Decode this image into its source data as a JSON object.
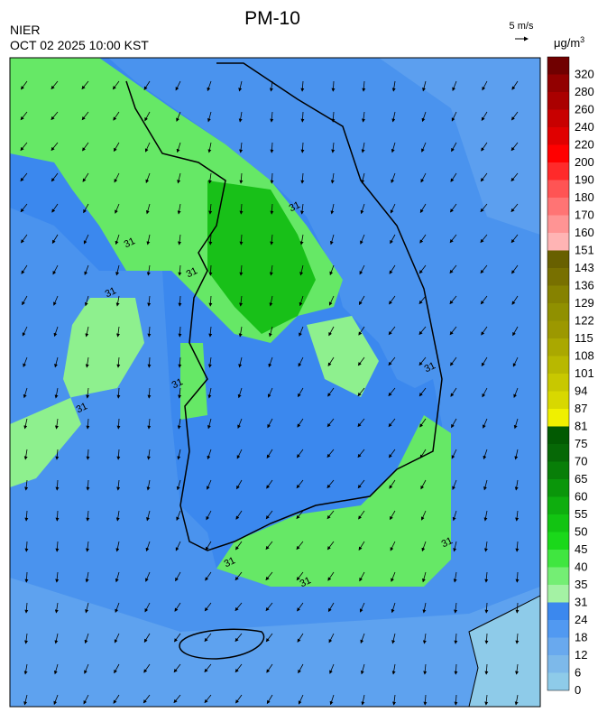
{
  "header": {
    "title": "PM-10",
    "agency": "NIER",
    "timestamp": "OCT 02 2025 10:00 KST"
  },
  "wind_scale": {
    "label": "5 m/s"
  },
  "legend": {
    "unit": "μg/m",
    "unit_exponent": "3",
    "ticks": [
      0,
      6,
      12,
      18,
      24,
      31,
      35,
      40,
      45,
      50,
      55,
      60,
      65,
      70,
      75,
      81,
      87,
      94,
      101,
      108,
      115,
      122,
      129,
      136,
      143,
      151,
      160,
      170,
      180,
      190,
      200,
      220,
      240,
      260,
      280,
      320
    ],
    "colors": [
      "#8ecbe9",
      "#7db9ea",
      "#69a9ee",
      "#5199f1",
      "#3b88ee",
      "#a4f2a4",
      "#74ee74",
      "#40e640",
      "#1ad81a",
      "#12c412",
      "#0eae0e",
      "#0a960a",
      "#087e08",
      "#066806",
      "#025a02",
      "#f0f000",
      "#d8d800",
      "#c8c800",
      "#b8b800",
      "#aaa800",
      "#9c9800",
      "#909000",
      "#868200",
      "#787000",
      "#686000",
      "#ffb4b4",
      "#ff9494",
      "#ff7474",
      "#ff5454",
      "#ff2a2a",
      "#ff0000",
      "#e00000",
      "#c80000",
      "#aa0000",
      "#920000",
      "#700000"
    ]
  },
  "map": {
    "contour_labels": [
      "31",
      "31",
      "31",
      "31",
      "31",
      "31",
      "31",
      "31",
      "31",
      "31"
    ]
  }
}
